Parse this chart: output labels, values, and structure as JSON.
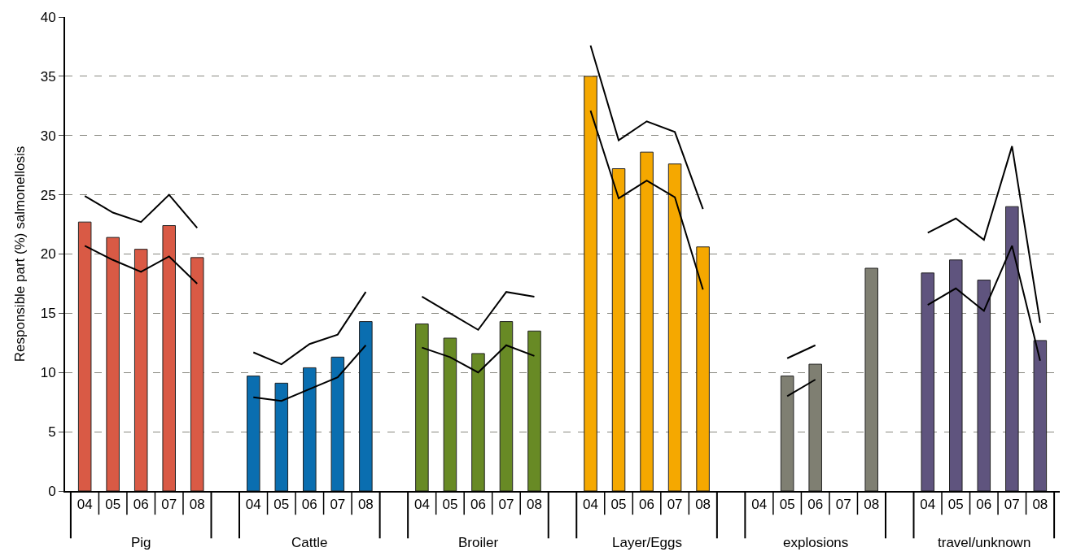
{
  "chart_data": {
    "type": "bar",
    "ylabel": "Responsible part (%) salmonellosis",
    "categories": [
      "04",
      "05",
      "06",
      "07",
      "08",
      null,
      "04",
      "05",
      "06",
      "07",
      "08",
      null,
      "04",
      "05",
      "06",
      "07",
      "08",
      null,
      "04",
      "05",
      "06",
      "07",
      "08",
      null,
      "04",
      "05",
      "06",
      "07",
      "08",
      null,
      "04",
      "05",
      "06",
      "07",
      "08"
    ],
    "series": [
      {
        "colors": [
          "#d95a45",
          "#d95a45",
          "#d95a45",
          "#d95a45",
          "#d95a45",
          "#ffffff",
          "#0a6eb0",
          "#0a6eb0",
          "#0a6eb0",
          "#0a6eb0",
          "#0a6eb0",
          "#ffffff",
          "#688a25",
          "#688a25",
          "#688a25",
          "#688a25",
          "#688a25",
          "#ffffff",
          "#f5a800",
          "#f5a800",
          "#f5a800",
          "#f5a800",
          "#f5a800",
          "#ffffff",
          "#7f7f72",
          "#7f7f72",
          "#7f7f72",
          "#7f7f72",
          "#7f7f72",
          "#ffffff",
          "#5f547e",
          "#5f547e",
          "#5f547e",
          "#5f547e",
          "#5f547e"
        ],
        "values": [
          22.7,
          21.4,
          20.4,
          22.4,
          19.7,
          null,
          9.7,
          9.1,
          10.4,
          11.3,
          14.3,
          null,
          14.1,
          12.9,
          11.6,
          14.3,
          13.5,
          null,
          35.0,
          27.2,
          28.6,
          27.6,
          20.6,
          null,
          null,
          9.7,
          10.7,
          null,
          18.8,
          null,
          18.4,
          19.5,
          17.8,
          24.0,
          12.7
        ]
      },
      {
        "type": "line",
        "color": "#000000",
        "values": [
          24.9,
          23.5,
          22.7,
          25.0,
          22.2,
          null,
          11.7,
          10.7,
          12.4,
          13.2,
          16.8,
          null,
          16.4,
          15.0,
          13.6,
          16.8,
          16.4,
          null,
          37.6,
          29.6,
          31.2,
          30.3,
          23.8,
          null,
          null,
          11.2,
          12.3,
          null,
          null,
          null,
          21.8,
          23.0,
          21.2,
          29.1,
          14.2
        ]
      },
      {
        "type": "line",
        "color": "#000000",
        "values": [
          20.7,
          19.5,
          18.5,
          19.8,
          17.5,
          null,
          7.9,
          7.6,
          8.6,
          9.6,
          12.3,
          null,
          12.1,
          11.3,
          10.0,
          12.3,
          11.4,
          null,
          32.1,
          24.7,
          26.2,
          24.8,
          17.0,
          null,
          null,
          8.0,
          9.4,
          null,
          null,
          null,
          15.7,
          17.1,
          15.2,
          20.7,
          11.0
        ]
      }
    ],
    "annotations": [
      "Pig",
      "Cattle",
      "Broiler",
      "Layer/Eggs",
      "explosions",
      "travel/unknown"
    ],
    "ylim": [
      0,
      40
    ],
    "yticks": [
      0,
      5,
      10,
      15,
      20,
      25,
      30,
      35,
      40
    ],
    "grid": "y",
    "marker": "none",
    "line_style": "solid"
  }
}
